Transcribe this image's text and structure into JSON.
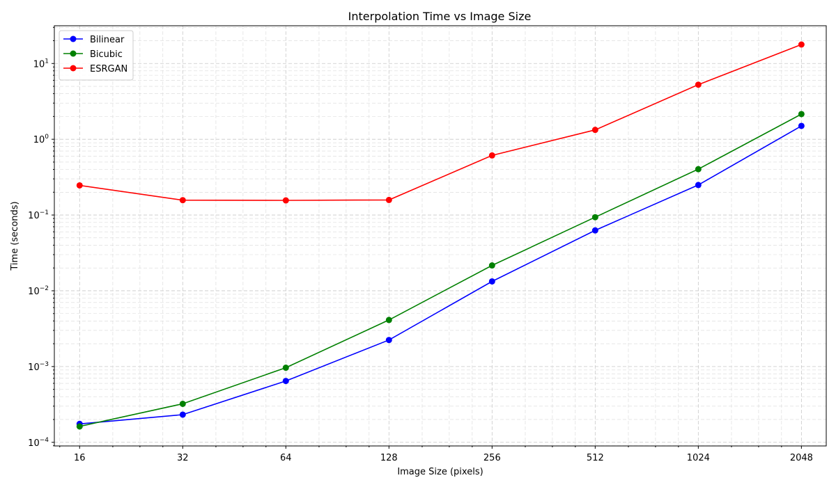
{
  "chart_data": {
    "type": "line",
    "title": "Interpolation Time vs Image Size",
    "xlabel": "Image Size (pixels)",
    "ylabel": "Time (seconds)",
    "xscale": "log2",
    "yscale": "log10",
    "x": [
      16,
      32,
      64,
      128,
      256,
      512,
      1024,
      2048
    ],
    "x_tick_labels": [
      "16",
      "32",
      "64",
      "128",
      "256",
      "512",
      "1024",
      "2048"
    ],
    "xlim": [
      13.5,
      2420
    ],
    "y_tick_labels": [
      {
        "base": "10",
        "exp": "−4"
      },
      {
        "base": "10",
        "exp": "−3"
      },
      {
        "base": "10",
        "exp": "−2"
      },
      {
        "base": "10",
        "exp": "−1"
      },
      {
        "base": "10",
        "exp": "0"
      },
      {
        "base": "10",
        "exp": "1"
      }
    ],
    "ylim": [
      8.95e-05,
      31.5
    ],
    "grid": true,
    "legend_position": "top-left",
    "marker": "circle",
    "series": [
      {
        "name": "Bilinear",
        "color": "#0000ff",
        "values": [
          0.000175,
          0.000232,
          0.000645,
          0.00224,
          0.0133,
          0.0627,
          0.249,
          1.5
        ]
      },
      {
        "name": "Bicubic",
        "color": "#008000",
        "values": [
          0.000162,
          0.000322,
          0.000965,
          0.00412,
          0.0216,
          0.0935,
          0.403,
          2.15
        ]
      },
      {
        "name": "ESRGAN",
        "color": "#ff0000",
        "values": [
          0.246,
          0.157,
          0.156,
          0.158,
          0.612,
          1.33,
          5.25,
          17.8
        ]
      }
    ]
  }
}
